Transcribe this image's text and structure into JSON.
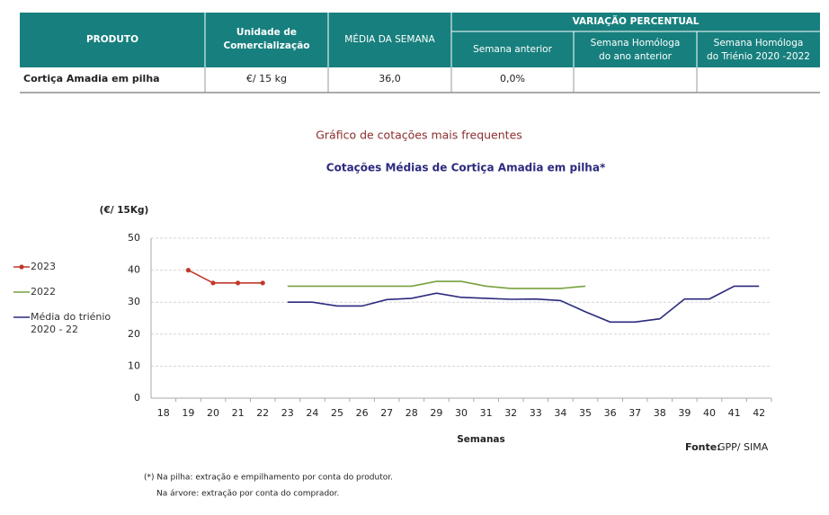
{
  "table": {
    "headers": {
      "product": "PRODUTO",
      "unit": [
        "Unidade de",
        "Comercialização"
      ],
      "week_avg": "MÉDIA DA SEMANA",
      "variation": "VARIAÇÃO PERCENTUAL",
      "prev_week": "Semana anterior",
      "same_week_last_year": [
        "Semana Homóloga",
        "do ano anterior"
      ],
      "same_week_triennium": [
        "Semana Homóloga",
        "do Triénio 2020 -2022"
      ]
    },
    "rows": [
      [
        "Cortiça Amadia em pilha",
        "€/ 15 kg",
        "36,0",
        "0,0%"
      ]
    ]
  },
  "chart_data": {
    "type": "line",
    "subtitle": "Gráfico de cotações mais frequentes",
    "title": "Cotações Médias de Cortiça Amadia em pilha*",
    "y_label": "(€/ 15Kg)",
    "x_label": "Semanas",
    "categories": [
      "18",
      "19",
      "20",
      "21",
      "22",
      "23",
      "24",
      "25",
      "26",
      "27",
      "28",
      "29",
      "30",
      "31",
      "32",
      "33",
      "34",
      "35",
      "36",
      "37",
      "38",
      "39",
      "40",
      "41",
      "42"
    ],
    "series": [
      {
        "name": "2023",
        "color": "#c0392b",
        "markers": true,
        "values": [
          null,
          40,
          36,
          36,
          36,
          null,
          null,
          null,
          null,
          null,
          null,
          null,
          null,
          null,
          null,
          null,
          null,
          null,
          null,
          null,
          null,
          null,
          null,
          null,
          null
        ]
      },
      {
        "name": "2022",
        "color": "#77a13f",
        "markers": false,
        "values": [
          null,
          null,
          null,
          null,
          null,
          35,
          35,
          35,
          35,
          35,
          35,
          36.5,
          36.5,
          35,
          34.3,
          34.3,
          34.3,
          35,
          null,
          null,
          null,
          null,
          null,
          null,
          null
        ]
      },
      {
        "name": "Média do triénio 2020 - 22",
        "color": "#2b2a7e",
        "markers": false,
        "values": [
          null,
          null,
          null,
          null,
          null,
          30,
          30,
          28.8,
          28.8,
          30.8,
          31.2,
          32.8,
          31.5,
          31.2,
          30.9,
          31,
          30.5,
          27,
          23.8,
          23.8,
          24.8,
          31,
          31,
          35,
          35
        ]
      }
    ],
    "ylim": [
      0,
      50
    ],
    "yticks": [
      0,
      10,
      20,
      30,
      40,
      50
    ],
    "grid": true,
    "legend": "left"
  },
  "source": {
    "label": "Fonte:",
    "text": "GPP/ SIMA"
  },
  "notes": [
    "(*) Na pilha: extração e empilhamento por conta do produtor.",
    "Na árvore: extração por conta do comprador."
  ]
}
